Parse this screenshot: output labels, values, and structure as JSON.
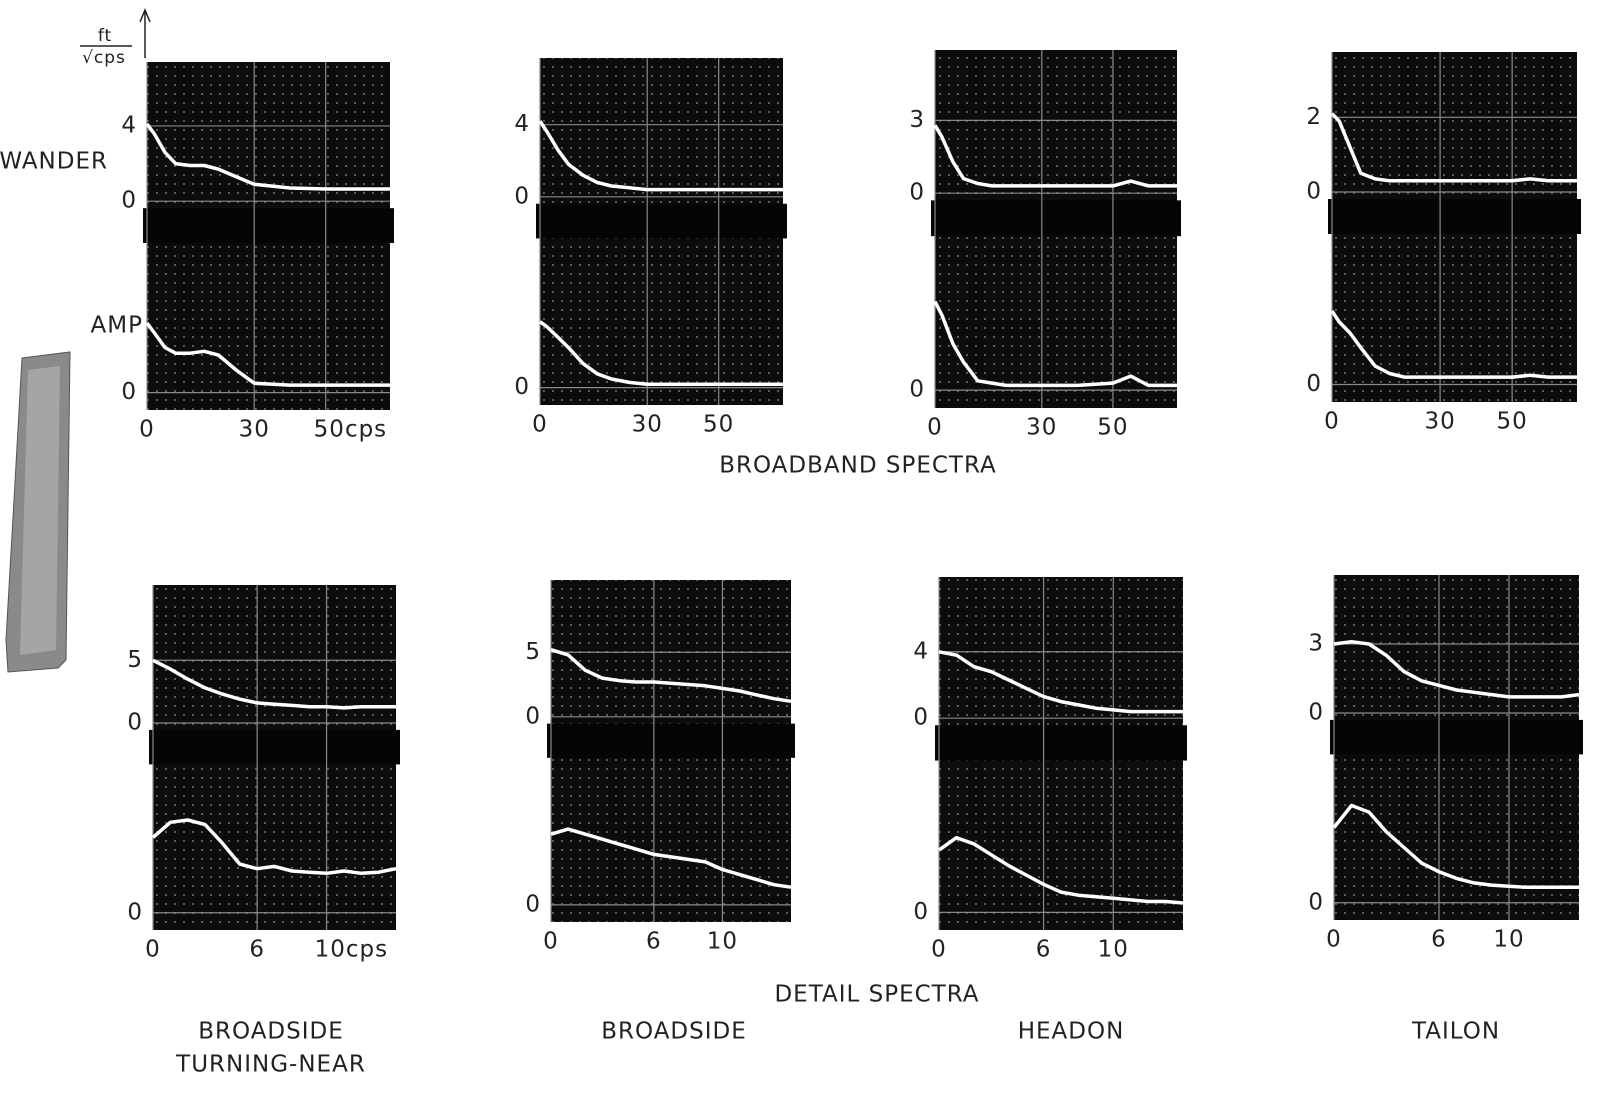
{
  "figure": {
    "y_unit": {
      "numerator": "ft",
      "denominator": "√cps"
    },
    "row_labels": {
      "wander": "WANDER",
      "amp": "AMP"
    },
    "section_titles": {
      "broadband": "BROADBAND SPECTRA",
      "detail": "DETAIL SPECTRA"
    },
    "captions": [
      [
        "BROADSIDE",
        "TURNING-NEAR"
      ],
      [
        "BROADSIDE"
      ],
      [
        "HEADON"
      ],
      [
        "TAILON"
      ]
    ]
  },
  "chart_data": [
    {
      "type": "line",
      "x": [
        0,
        2,
        5,
        8,
        12,
        16,
        20,
        25,
        30,
        40,
        50,
        55,
        60,
        68
      ],
      "series": [
        {
          "color": "#ffffff",
          "values": [
            4.1,
            3.6,
            2.6,
            2.0,
            1.9,
            1.9,
            1.7,
            1.3,
            0.9,
            0.7,
            0.65,
            0.65,
            0.65,
            0.65
          ]
        },
        {
          "color": "#ffffff",
          "axis": "y2",
          "values": [
            3.7,
            3.2,
            2.4,
            2.1,
            2.1,
            2.2,
            2.0,
            1.2,
            0.5,
            0.4,
            0.4,
            0.4,
            0.4,
            0.4
          ]
        }
      ],
      "xlim": [
        0,
        68
      ],
      "xticks": [
        0,
        30,
        {
          "value": 50,
          "label": "50cps"
        }
      ],
      "ylim": [
        0,
        7.4
      ],
      "yticks": [
        0,
        4
      ],
      "y2lim": [
        0,
        7.6
      ],
      "y2ticks": [
        0
      ]
    },
    {
      "type": "line",
      "x": [
        0,
        2,
        5,
        8,
        12,
        16,
        20,
        25,
        30,
        40,
        50,
        55,
        60,
        68
      ],
      "series": [
        {
          "color": "#ffffff",
          "values": [
            4.2,
            3.6,
            2.6,
            1.8,
            1.2,
            0.8,
            0.6,
            0.5,
            0.4,
            0.4,
            0.4,
            0.4,
            0.4,
            0.4
          ]
        },
        {
          "color": "#ffffff",
          "axis": "y2",
          "values": [
            3.8,
            3.5,
            2.9,
            2.3,
            1.4,
            0.8,
            0.5,
            0.3,
            0.2,
            0.2,
            0.2,
            0.2,
            0.2,
            0.2
          ]
        }
      ],
      "xlim": [
        0,
        68
      ],
      "xticks": [
        0,
        30,
        50
      ],
      "ylim": [
        0,
        7.7
      ],
      "yticks": [
        0,
        4
      ],
      "y2lim": [
        0,
        8.2
      ],
      "y2ticks": [
        0
      ]
    },
    {
      "type": "line",
      "x": [
        0,
        2,
        5,
        8,
        12,
        16,
        20,
        25,
        30,
        40,
        50,
        55,
        60,
        68
      ],
      "series": [
        {
          "color": "#ffffff",
          "values": [
            2.8,
            2.3,
            1.3,
            0.6,
            0.4,
            0.3,
            0.3,
            0.3,
            0.3,
            0.3,
            0.3,
            0.5,
            0.3,
            0.3
          ]
        },
        {
          "color": "#ffffff",
          "axis": "y2",
          "values": [
            3.8,
            3.2,
            2.0,
            1.2,
            0.4,
            0.3,
            0.2,
            0.2,
            0.2,
            0.2,
            0.3,
            0.6,
            0.2,
            0.2
          ]
        }
      ],
      "xlim": [
        0,
        68
      ],
      "xticks": [
        0,
        30,
        50
      ],
      "ylim": [
        0,
        5.9
      ],
      "yticks": [
        0,
        3
      ],
      "y2lim": [
        0,
        6.3
      ],
      "y2ticks": [
        0
      ]
    },
    {
      "type": "line",
      "x": [
        0,
        2,
        5,
        8,
        12,
        16,
        20,
        25,
        30,
        40,
        50,
        55,
        60,
        68
      ],
      "series": [
        {
          "color": "#ffffff",
          "values": [
            2.1,
            1.9,
            1.2,
            0.5,
            0.35,
            0.3,
            0.3,
            0.3,
            0.3,
            0.3,
            0.3,
            0.35,
            0.3,
            0.3
          ]
        },
        {
          "color": "#ffffff",
          "axis": "y2",
          "values": [
            2.0,
            1.7,
            1.4,
            1.0,
            0.5,
            0.3,
            0.2,
            0.2,
            0.2,
            0.2,
            0.2,
            0.25,
            0.2,
            0.2
          ]
        }
      ],
      "xlim": [
        0,
        68
      ],
      "xticks": [
        0,
        30,
        50
      ],
      "ylim": [
        0,
        3.75
      ],
      "yticks": [
        0,
        2
      ],
      "y2lim": [
        0,
        3.9
      ],
      "y2ticks": [
        0
      ]
    },
    {
      "type": "line",
      "x": [
        0,
        1,
        2,
        3,
        4,
        5,
        6,
        7,
        8,
        9,
        10,
        11,
        12,
        13,
        14
      ],
      "series": [
        {
          "color": "#ffffff",
          "values": [
            5.0,
            4.3,
            3.5,
            2.8,
            2.3,
            1.9,
            1.6,
            1.5,
            1.4,
            1.3,
            1.3,
            1.2,
            1.3,
            1.3,
            1.3
          ]
        },
        {
          "color": "#ffffff",
          "axis": "y2",
          "values": [
            6.5,
            7.8,
            8.0,
            7.6,
            6.0,
            4.2,
            3.8,
            4.0,
            3.6,
            3.5,
            3.4,
            3.6,
            3.4,
            3.5,
            3.8
          ]
        }
      ],
      "xlim": [
        0,
        14
      ],
      "xticks": [
        0,
        6,
        {
          "value": 10,
          "label": "10cps"
        }
      ],
      "ylim": [
        0,
        11
      ],
      "yticks": [
        0,
        5
      ],
      "y2lim": [
        0,
        12.2
      ],
      "y2ticks": [
        0
      ]
    },
    {
      "type": "line",
      "x": [
        0,
        1,
        2,
        3,
        4,
        5,
        6,
        7,
        8,
        9,
        10,
        11,
        12,
        13,
        14
      ],
      "series": [
        {
          "color": "#ffffff",
          "values": [
            5.2,
            4.8,
            3.6,
            3.0,
            2.8,
            2.7,
            2.7,
            2.6,
            2.5,
            2.4,
            2.2,
            2.0,
            1.7,
            1.4,
            1.2
          ]
        },
        {
          "color": "#ffffff",
          "axis": "y2",
          "values": [
            5.6,
            6.0,
            5.6,
            5.2,
            4.8,
            4.4,
            4.0,
            3.8,
            3.6,
            3.4,
            2.8,
            2.4,
            2.0,
            1.6,
            1.4
          ]
        }
      ],
      "xlim": [
        0,
        14
      ],
      "xticks": [
        0,
        6,
        10
      ],
      "ylim": [
        0,
        10.6
      ],
      "yticks": [
        0,
        5
      ],
      "y2lim": [
        0,
        11.1
      ],
      "y2ticks": [
        0
      ]
    },
    {
      "type": "line",
      "x": [
        0,
        1,
        2,
        3,
        4,
        5,
        6,
        7,
        8,
        9,
        10,
        11,
        12,
        13,
        14
      ],
      "series": [
        {
          "color": "#ffffff",
          "values": [
            4.0,
            3.8,
            3.1,
            2.8,
            2.3,
            1.8,
            1.3,
            1.0,
            0.8,
            0.6,
            0.5,
            0.4,
            0.4,
            0.4,
            0.4
          ]
        },
        {
          "color": "#ffffff",
          "axis": "y2",
          "values": [
            4.0,
            4.8,
            4.4,
            3.7,
            3.0,
            2.4,
            1.8,
            1.3,
            1.1,
            1.0,
            0.9,
            0.8,
            0.7,
            0.7,
            0.6
          ]
        }
      ],
      "xlim": [
        0,
        14
      ],
      "xticks": [
        0,
        6,
        10
      ],
      "ylim": [
        0,
        8.5
      ],
      "yticks": [
        0,
        4
      ],
      "y2lim": [
        0,
        9.3
      ],
      "y2ticks": [
        0
      ]
    },
    {
      "type": "line",
      "x": [
        0,
        1,
        2,
        3,
        4,
        5,
        6,
        7,
        8,
        9,
        10,
        11,
        12,
        13,
        14
      ],
      "series": [
        {
          "color": "#ffffff",
          "values": [
            3.0,
            3.1,
            3.0,
            2.5,
            1.8,
            1.4,
            1.2,
            1.0,
            0.9,
            0.8,
            0.7,
            0.7,
            0.7,
            0.7,
            0.8
          ]
        },
        {
          "color": "#ffffff",
          "axis": "y2",
          "values": [
            3.4,
            4.4,
            4.1,
            3.2,
            2.5,
            1.8,
            1.4,
            1.1,
            0.9,
            0.8,
            0.75,
            0.7,
            0.7,
            0.7,
            0.7
          ]
        }
      ],
      "xlim": [
        0,
        14
      ],
      "xticks": [
        0,
        6,
        10
      ],
      "ylim": [
        0,
        6.0
      ],
      "yticks": [
        0,
        3
      ],
      "y2lim": [
        0,
        6.4
      ],
      "y2ticks": [
        0
      ]
    }
  ]
}
